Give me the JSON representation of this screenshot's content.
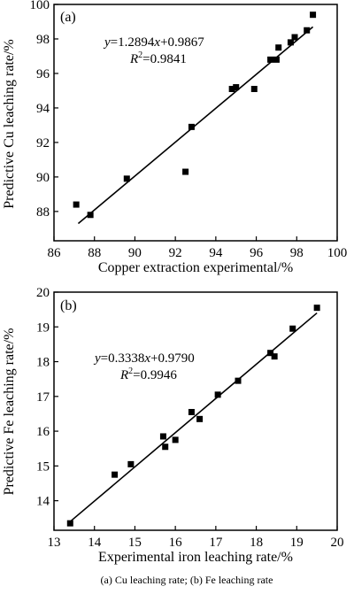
{
  "caption": "(a) Cu leaching rate; (b) Fe leaching rate",
  "chart_data": [
    {
      "type": "scatter",
      "panel_label": "(a)",
      "xlabel": "Copper extraction experimental/%",
      "ylabel": "Predictive Cu leaching rate/%",
      "xlim": [
        86,
        100
      ],
      "ylim": [
        86.3,
        100
      ],
      "xticks": [
        86,
        88,
        90,
        92,
        94,
        96,
        98,
        100
      ],
      "yticks": [
        88,
        90,
        92,
        94,
        96,
        98,
        100
      ],
      "equation": {
        "y": "y",
        "rhs": "=1.2894",
        "x": "x",
        "tail": "+0.9867"
      },
      "r2": {
        "R": "R",
        "sup": "2",
        "val": "=0.9841"
      },
      "fit_line": {
        "x": [
          87.2,
          98.8
        ],
        "y": [
          87.3,
          98.7
        ]
      },
      "points": [
        {
          "x": 87.1,
          "y": 88.4
        },
        {
          "x": 87.8,
          "y": 87.8
        },
        {
          "x": 89.6,
          "y": 89.9
        },
        {
          "x": 92.5,
          "y": 90.3
        },
        {
          "x": 92.8,
          "y": 92.9
        },
        {
          "x": 94.8,
          "y": 95.1
        },
        {
          "x": 95.0,
          "y": 95.2
        },
        {
          "x": 95.9,
          "y": 95.1
        },
        {
          "x": 96.7,
          "y": 96.8
        },
        {
          "x": 97.0,
          "y": 96.8
        },
        {
          "x": 97.1,
          "y": 97.5
        },
        {
          "x": 97.7,
          "y": 97.8
        },
        {
          "x": 97.9,
          "y": 98.1
        },
        {
          "x": 98.5,
          "y": 98.5
        },
        {
          "x": 98.8,
          "y": 99.4
        }
      ]
    },
    {
      "type": "scatter",
      "panel_label": "(b)",
      "xlabel": "Experimental iron leaching rate/%",
      "ylabel": "Predictive Fe leaching rate/%",
      "xlim": [
        13,
        20
      ],
      "ylim": [
        13.15,
        20
      ],
      "xticks": [
        13,
        14,
        15,
        16,
        17,
        18,
        19,
        20
      ],
      "yticks": [
        14,
        15,
        16,
        17,
        18,
        19,
        20
      ],
      "equation": {
        "y": "y",
        "rhs": "=0.3338",
        "x": "x",
        "tail": "+0.9790"
      },
      "r2": {
        "R": "R",
        "sup": "2",
        "val": "=0.9946"
      },
      "fit_line": {
        "x": [
          13.4,
          19.5
        ],
        "y": [
          13.4,
          19.4
        ]
      },
      "points": [
        {
          "x": 13.4,
          "y": 13.35
        },
        {
          "x": 14.5,
          "y": 14.75
        },
        {
          "x": 14.9,
          "y": 15.05
        },
        {
          "x": 15.7,
          "y": 15.85
        },
        {
          "x": 15.75,
          "y": 15.55
        },
        {
          "x": 16.0,
          "y": 15.75
        },
        {
          "x": 16.4,
          "y": 16.55
        },
        {
          "x": 16.6,
          "y": 16.35
        },
        {
          "x": 17.05,
          "y": 17.05
        },
        {
          "x": 17.55,
          "y": 17.45
        },
        {
          "x": 18.35,
          "y": 18.25
        },
        {
          "x": 18.45,
          "y": 18.15
        },
        {
          "x": 18.9,
          "y": 18.95
        },
        {
          "x": 19.5,
          "y": 19.55
        }
      ]
    }
  ]
}
